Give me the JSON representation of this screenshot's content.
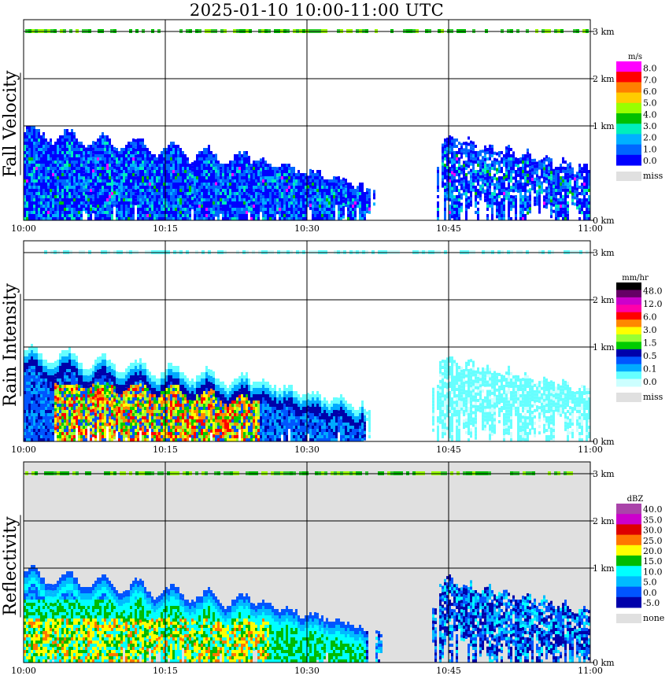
{
  "title": "2025-01-10   10:00-11:00 UTC",
  "colors": {
    "missing": "#e0e0e0",
    "grid": "#000000"
  },
  "chart_data": [
    {
      "type": "heatmap",
      "name": "Fall Velocity",
      "ylabel": "Fall Velocity",
      "x_ticks": [
        "10:00",
        "10:15",
        "10:30",
        "10:45",
        "11:00"
      ],
      "y_ticks": [
        "0 km",
        "1 km",
        "2 km",
        "3 km"
      ],
      "ylim_km": [
        0,
        3.2
      ],
      "xlim_min": [
        0,
        60
      ],
      "background": "none",
      "colorbar": {
        "unit": "m/s",
        "labels": [
          "8.0",
          "7.0",
          "6.0",
          "5.0",
          "4.0",
          "3.0",
          "2.0",
          "1.0",
          "0.0"
        ],
        "colors": [
          "#ff00ff",
          "#ff0000",
          "#ff7f00",
          "#ffcc00",
          "#99ff00",
          "#00c000",
          "#00eebb",
          "#00b0ff",
          "#0066ff",
          "#0000ff"
        ],
        "missing_label": "miss"
      }
    },
    {
      "type": "heatmap",
      "name": "Rain Intensity",
      "ylabel": "Rain Intensity",
      "x_ticks": [
        "10:00",
        "10:15",
        "10:30",
        "10:45",
        "11:00"
      ],
      "y_ticks": [
        "0 km",
        "1 km",
        "2 km",
        "3 km"
      ],
      "ylim_km": [
        0,
        3.2
      ],
      "xlim_min": [
        0,
        60
      ],
      "background": "none",
      "colorbar": {
        "unit": "mm/hr",
        "labels": [
          "48.0",
          "12.0",
          "6.0",
          "3.0",
          "1.5",
          "0.5",
          "0.1",
          "0.0"
        ],
        "colors": [
          "#000000",
          "#660066",
          "#cc00cc",
          "#ff00aa",
          "#ff0000",
          "#ff8800",
          "#ffff00",
          "#99ff33",
          "#00cc00",
          "#0000aa",
          "#0055ff",
          "#00aaff",
          "#66ffff",
          "#ccffff"
        ],
        "missing_label": "miss"
      }
    },
    {
      "type": "heatmap",
      "name": "Reflectivity",
      "ylabel": "Reflectivity",
      "x_ticks": [
        "10:00",
        "10:15",
        "10:30",
        "10:45",
        "11:00"
      ],
      "y_ticks": [
        "0 km",
        "1 km",
        "2 km",
        "3 km"
      ],
      "ylim_km": [
        0,
        3.2
      ],
      "xlim_min": [
        0,
        60
      ],
      "background": "none-grey",
      "colorbar": {
        "unit": "dBZ",
        "labels": [
          "40.0",
          "35.0",
          "30.0",
          "25.0",
          "20.0",
          "15.0",
          "10.0",
          "5.0",
          "0.0",
          "-5.0"
        ],
        "colors": [
          "#aa44aa",
          "#cc00cc",
          "#dd0000",
          "#ff7700",
          "#ffff00",
          "#00bb00",
          "#00ffff",
          "#00bbff",
          "#0055ff",
          "#0000aa"
        ],
        "missing_label": "none"
      }
    }
  ]
}
